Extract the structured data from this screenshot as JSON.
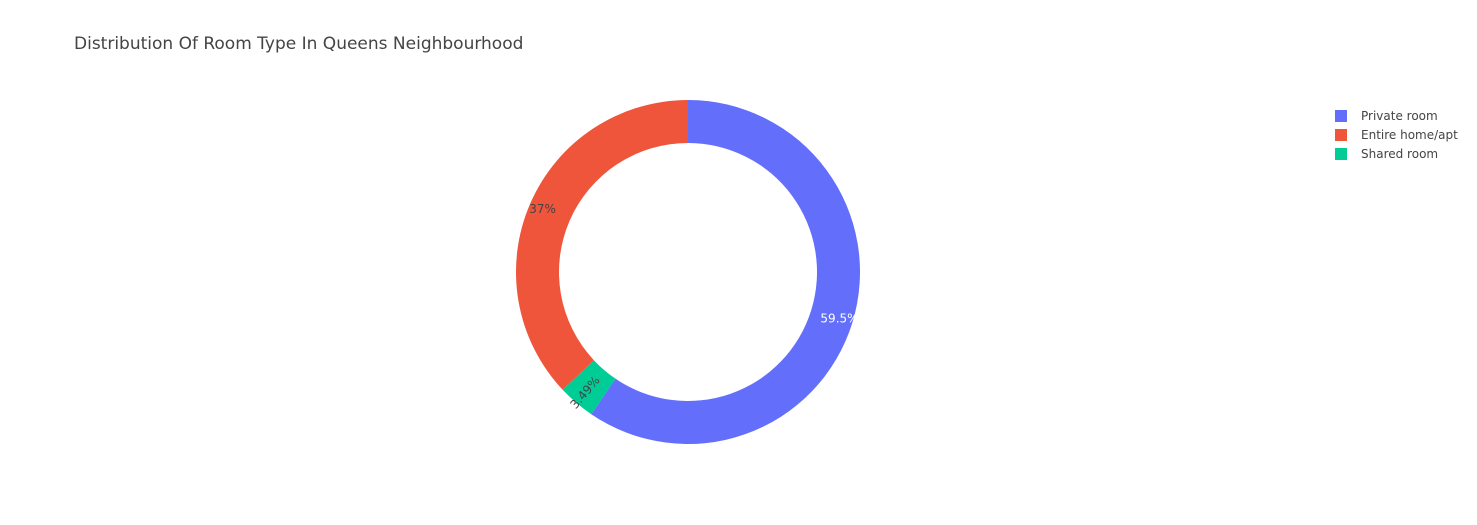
{
  "chart_data": {
    "type": "pie",
    "hole": true,
    "title": "Distribution Of Room Type In Queens Neighbourhood",
    "legend_position": "top-right",
    "slices": [
      {
        "label": "Private room",
        "value": 59.5,
        "text": "59.5%",
        "color": "#636efa",
        "text_color": "#ffffff"
      },
      {
        "label": "Shared room",
        "value": 3.49,
        "text": "3.49%",
        "color": "#00cc96",
        "text_color": "#444444"
      },
      {
        "label": "Entire home/apt",
        "value": 37,
        "text": "37%",
        "color": "#ef553b",
        "text_color": "#444444"
      }
    ],
    "legend": [
      {
        "label": "Private room",
        "color": "#636efa"
      },
      {
        "label": "Entire home/apt",
        "color": "#ef553b"
      },
      {
        "label": "Shared room",
        "color": "#00cc96"
      }
    ]
  }
}
